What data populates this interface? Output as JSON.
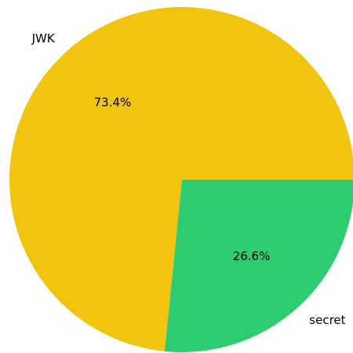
{
  "chart_data": {
    "type": "pie",
    "title": "",
    "slices": [
      {
        "label": "JWK",
        "value": 73.4,
        "pct_label": "73.4%",
        "color": "#f1c40f"
      },
      {
        "label": "secret",
        "value": 26.6,
        "pct_label": "26.6%",
        "color": "#2ecc71"
      }
    ],
    "start_angle_deg": 0,
    "direction": "counterclockwise"
  }
}
